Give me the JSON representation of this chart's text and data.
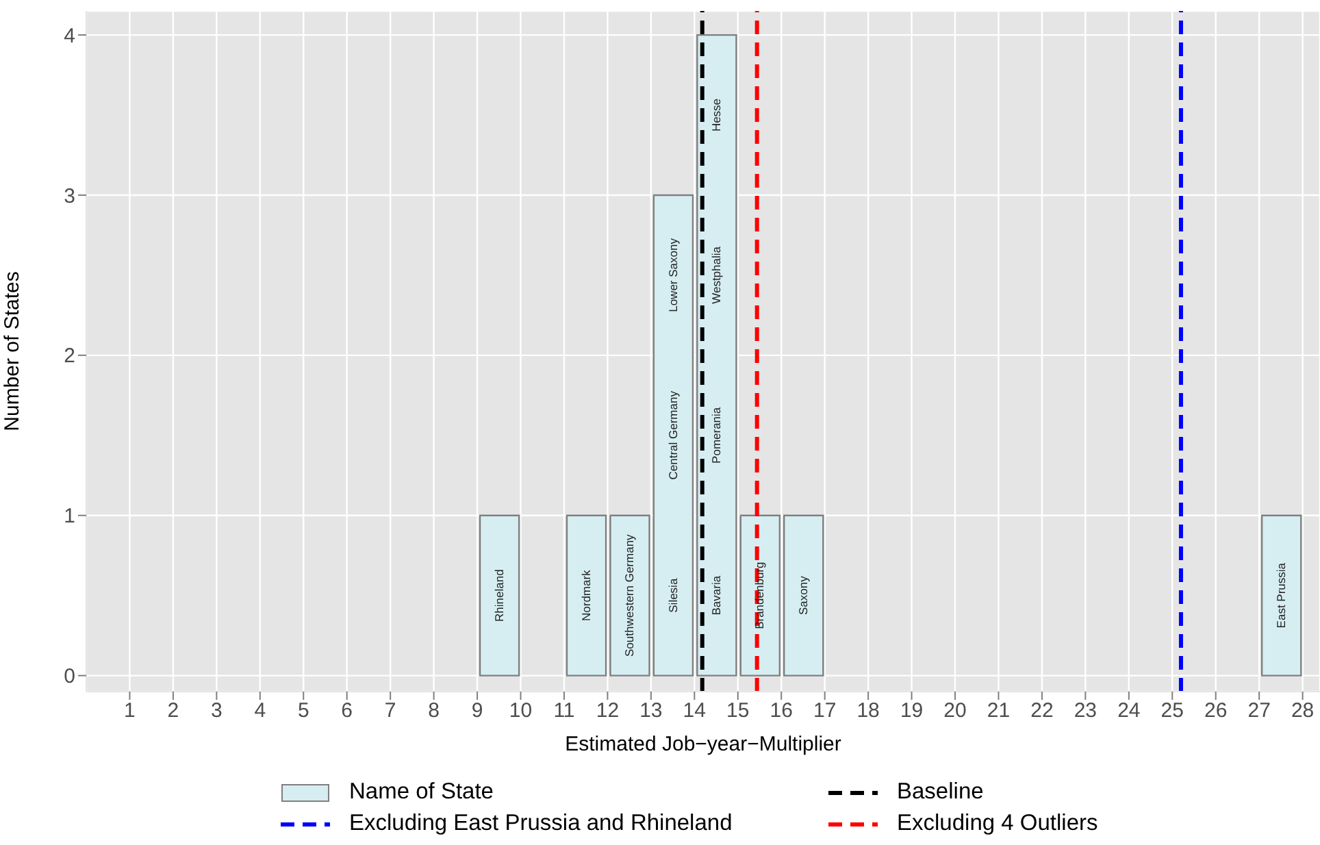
{
  "chart_data": {
    "type": "histogram",
    "xlabel": "Estimated Job−year−Multiplier",
    "ylabel": "Number of States",
    "bins": [
      9,
      10,
      11,
      12,
      13,
      14,
      15,
      16,
      17,
      18,
      19,
      20,
      21,
      22,
      23,
      24,
      25,
      26,
      27,
      28
    ],
    "series": [
      {
        "name": "Name of State",
        "color": "#d6eef2",
        "values": [
          1,
          0,
          1,
          1,
          3,
          4,
          1,
          1,
          0,
          0,
          0,
          0,
          0,
          0,
          0,
          0,
          0,
          0,
          1
        ]
      }
    ],
    "xlim": [
      0,
      28.4
    ],
    "xticks": [
      1,
      2,
      3,
      4,
      5,
      6,
      7,
      8,
      9,
      10,
      11,
      12,
      13,
      14,
      15,
      16,
      17,
      18,
      19,
      20,
      21,
      22,
      23,
      24,
      25,
      26,
      27,
      28
    ],
    "ylim": [
      -0.1,
      4.15
    ],
    "yticks": [
      0,
      1,
      2,
      3,
      4
    ],
    "ref_lines": [
      {
        "axis": "x",
        "value": 14.18,
        "label": "Baseline",
        "color": "#000000",
        "line_style": "dashed"
      },
      {
        "axis": "x",
        "value": 25.2,
        "label": "Excluding East Prussia and Rhineland",
        "color": "#0000ff",
        "line_style": "dashed"
      },
      {
        "axis": "x",
        "value": 15.44,
        "label": "Excluding 4 Outliers",
        "color": "#ff0000",
        "line_style": "dashed"
      }
    ],
    "annotations": [
      "Rhineland",
      "Nordmark",
      "Southwestern Germany",
      "Silesia",
      "Central Germany",
      "Lower Saxony",
      "Bavaria",
      "Pomerania",
      "Westphalia",
      "Hesse",
      "Brandenburg",
      "Saxony",
      "East Prussia"
    ],
    "grid": true,
    "legend": "bottom"
  }
}
